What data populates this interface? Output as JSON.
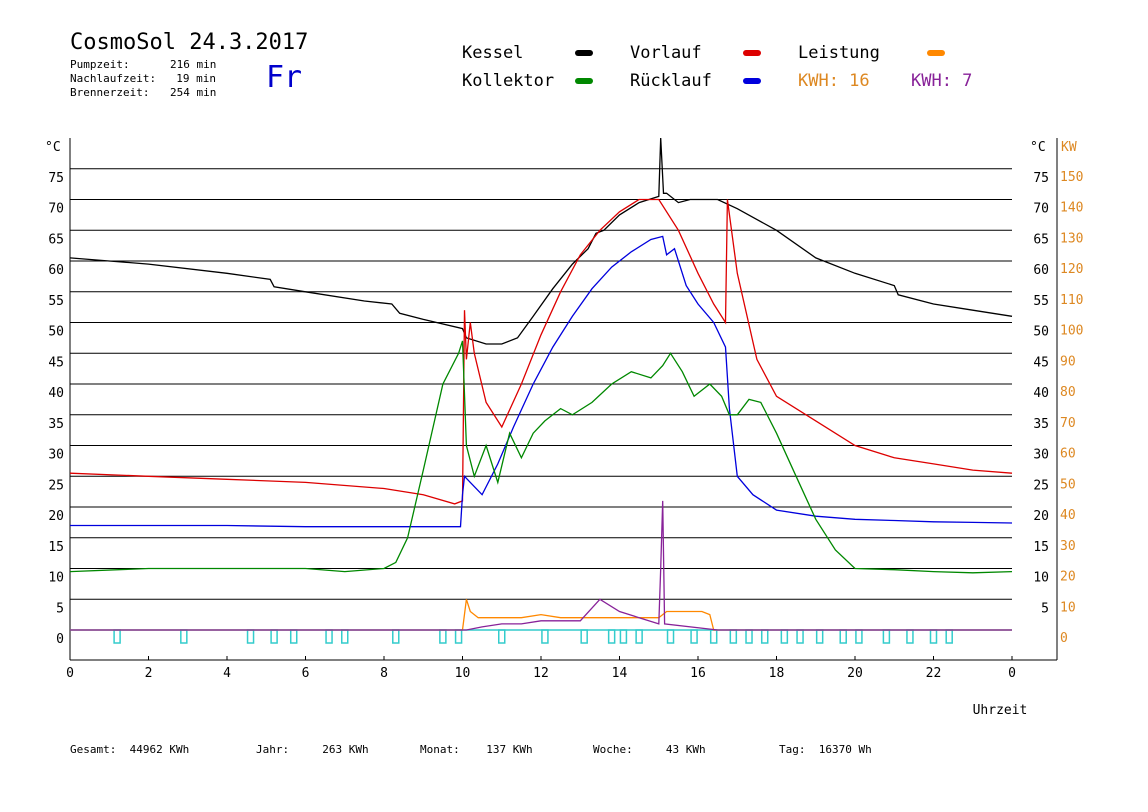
{
  "header": {
    "title": "CosmoSol 24.3.2017",
    "day": "Fr",
    "info": [
      {
        "label": "Pumpzeit:",
        "value": "216 min"
      },
      {
        "label": "Nachlaufzeit:",
        "value": "19 min"
      },
      {
        "label": "Brennerzeit:",
        "value": "254 min"
      }
    ]
  },
  "legend": {
    "items": [
      {
        "name": "Kessel",
        "color": "#000000"
      },
      {
        "name": "Vorlauf",
        "color": "#dd0000"
      },
      {
        "name": "Leistung",
        "color": "#ff8800"
      },
      {
        "name": "Kollektor",
        "color": "#008800"
      },
      {
        "name": "Rücklauf",
        "color": "#0000dd"
      }
    ],
    "kwh1": "KWH: 16",
    "kwh1_color": "#dd8822",
    "kwh2": "KWH: 7",
    "kwh2_color": "#882299"
  },
  "footer": {
    "items": [
      {
        "label": "Gesamt:",
        "value": "44962 KWh"
      },
      {
        "label": "Jahr:",
        "value": "263 KWh"
      },
      {
        "label": "Monat:",
        "value": "137 KWh"
      },
      {
        "label": "Woche:",
        "value": "43 KWh"
      },
      {
        "label": "Tag:",
        "value": "16370 Wh"
      }
    ]
  },
  "chart_data": {
    "type": "line",
    "xlabel": "Uhrzeit",
    "ylabel_left": "°C",
    "ylabel_right_1": "°C",
    "ylabel_right_2": "KW",
    "xlim": [
      0,
      24
    ],
    "ylim": [
      0,
      80
    ],
    "grid": true,
    "x_ticks": [
      "0",
      "2",
      "4",
      "6",
      "8",
      "10",
      "12",
      "14",
      "16",
      "18",
      "20",
      "22",
      "0"
    ],
    "y_ticks_left": [
      "0",
      "5",
      "10",
      "15",
      "20",
      "25",
      "30",
      "35",
      "40",
      "45",
      "50",
      "55",
      "60",
      "65",
      "70",
      "75"
    ],
    "y_ticks_right_celsius": [
      "5",
      "10",
      "15",
      "20",
      "25",
      "30",
      "35",
      "40",
      "45",
      "50",
      "55",
      "60",
      "65",
      "70",
      "75"
    ],
    "y_ticks_right_kw": [
      "0",
      "10",
      "20",
      "30",
      "40",
      "50",
      "60",
      "70",
      "80",
      "90",
      "100",
      "110",
      "120",
      "130",
      "140",
      "150"
    ],
    "series": [
      {
        "name": "Kessel",
        "color": "#000000",
        "x": [
          0,
          2,
          4,
          5.1,
          5.2,
          6,
          7.5,
          8.2,
          8.4,
          9,
          10,
          10.1,
          10.6,
          11,
          11.4,
          11.8,
          12.3,
          12.8,
          13.2,
          13.4,
          13.6,
          14,
          14.5,
          15,
          15.05,
          15.12,
          15.2,
          15.5,
          15.8,
          16.5,
          17,
          18,
          19,
          20,
          21,
          21.1,
          22,
          23,
          24
        ],
        "values": [
          60.5,
          59.5,
          58,
          57,
          55.8,
          55,
          53.5,
          53,
          51.5,
          50.5,
          49,
          47.5,
          46.5,
          46.5,
          47.5,
          51,
          55.5,
          59.5,
          62,
          64.5,
          65,
          67.5,
          69.5,
          70.5,
          80,
          71,
          71,
          69.5,
          70,
          70,
          68.5,
          65,
          60.5,
          58,
          56,
          54.5,
          53,
          52,
          51
        ]
      },
      {
        "name": "Vorlauf",
        "color": "#dd0000",
        "x": [
          0,
          2,
          4,
          6,
          8,
          9,
          9.8,
          10,
          10.05,
          10.1,
          10.2,
          10.3,
          10.6,
          11,
          11.5,
          12,
          12.5,
          13,
          13.5,
          14,
          14.5,
          15,
          15.5,
          16,
          16.4,
          16.7,
          16.75,
          17,
          17.5,
          18,
          19,
          20,
          21,
          22,
          23,
          24
        ],
        "values": [
          25.5,
          25,
          24.5,
          24,
          23,
          22,
          20.5,
          21,
          52,
          44,
          50,
          45,
          37,
          33,
          40,
          48,
          55,
          61,
          65,
          68,
          70,
          70,
          65,
          58,
          53,
          50,
          70,
          58,
          44,
          38,
          34,
          30,
          28,
          27,
          26,
          25.5
        ]
      },
      {
        "name": "Rücklauf",
        "color": "#0000dd",
        "x": [
          0,
          2,
          4,
          6,
          8,
          9,
          9.95,
          10,
          10.05,
          10.2,
          10.5,
          10.9,
          11.3,
          11.8,
          12.3,
          12.8,
          13.3,
          13.8,
          14.3,
          14.8,
          15.1,
          15.2,
          15.4,
          15.7,
          16,
          16.4,
          16.7,
          16.8,
          17,
          17.4,
          18,
          19,
          20,
          21,
          22,
          23,
          24
        ],
        "values": [
          17,
          17,
          17,
          16.8,
          16.8,
          16.8,
          16.8,
          22,
          25,
          24,
          22,
          27,
          33,
          40,
          46,
          51,
          55.5,
          59,
          61.5,
          63.5,
          64,
          61,
          62,
          56,
          53,
          50,
          46,
          36,
          25,
          22,
          19.5,
          18.5,
          18,
          17.8,
          17.6,
          17.5,
          17.4
        ]
      },
      {
        "name": "Kollektor",
        "color": "#008800",
        "x": [
          0,
          2,
          4,
          6,
          7,
          8,
          8.3,
          8.6,
          9,
          9.5,
          9.9,
          10,
          10.1,
          10.3,
          10.6,
          10.9,
          11.2,
          11.5,
          11.8,
          12.1,
          12.5,
          12.8,
          13.3,
          13.8,
          14.3,
          14.8,
          15.1,
          15.3,
          15.6,
          15.9,
          16.3,
          16.6,
          16.8,
          17,
          17.3,
          17.6,
          18,
          18.5,
          19,
          19.5,
          20,
          21,
          22,
          23,
          24
        ],
        "values": [
          9.5,
          10,
          10,
          10,
          9.5,
          10,
          11,
          15,
          26,
          40,
          45,
          47,
          30,
          25,
          30,
          24,
          32,
          28,
          32,
          34,
          36,
          35,
          37,
          40,
          42,
          41,
          43,
          45,
          42,
          38,
          40,
          38,
          35,
          35,
          37.5,
          37,
          32,
          25,
          18,
          13,
          10,
          9.8,
          9.5,
          9.3,
          9.5
        ]
      },
      {
        "name": "Leistung",
        "color": "#ff8800",
        "x": [
          0,
          9.9,
          10,
          10.1,
          10.2,
          10.4,
          10.6,
          11,
          11.5,
          12,
          12.5,
          13,
          13.5,
          14,
          14.5,
          15,
          15.2,
          15.5,
          15.8,
          16.1,
          16.3,
          16.4,
          24
        ],
        "values": [
          0,
          0,
          0,
          5,
          3,
          2,
          2,
          2,
          2,
          2.5,
          2,
          2,
          2,
          2,
          2,
          2,
          3,
          3,
          3,
          3,
          2.5,
          0,
          0
        ]
      },
      {
        "name": "KWH 7",
        "color": "#882299",
        "x": [
          0,
          10.1,
          10.5,
          11,
          11.5,
          12,
          12.5,
          13,
          13.5,
          14,
          14.5,
          15,
          15.05,
          15.1,
          15.15,
          16.5,
          24
        ],
        "values": [
          0,
          0,
          0.5,
          1,
          1,
          1.5,
          1.5,
          1.5,
          5,
          3,
          2,
          1,
          10,
          21,
          1,
          0,
          0
        ]
      }
    ],
    "pump_markers_x": [
      1.2,
      2.9,
      4.6,
      5.2,
      5.7,
      6.6,
      7,
      8.3,
      9.5,
      9.9,
      11,
      12.1,
      13.1,
      13.8,
      14.1,
      14.5,
      15.3,
      15.9,
      16.4,
      16.9,
      17.3,
      17.7,
      18.2,
      18.6,
      19.1,
      19.7,
      20.1,
      20.8,
      21.4,
      22,
      22.4
    ]
  }
}
